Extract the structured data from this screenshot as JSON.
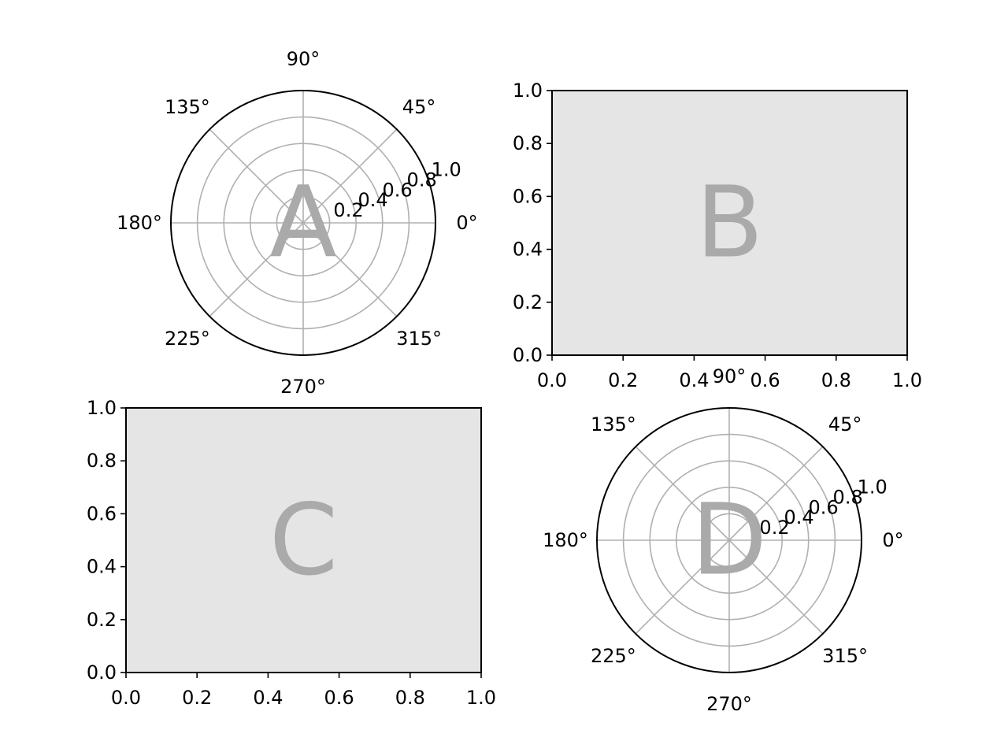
{
  "chart_data": [
    {
      "type": "polar",
      "panel_label": "A",
      "theta_tick_labels": [
        "0°",
        "45°",
        "90°",
        "135°",
        "180°",
        "225°",
        "270°",
        "315°"
      ],
      "theta_ticks_deg": [
        0,
        45,
        90,
        135,
        180,
        225,
        270,
        315
      ],
      "r_ticks": [
        0.2,
        0.4,
        0.6,
        0.8,
        1.0
      ],
      "r_tick_labels": [
        "0.2",
        "0.4",
        "0.6",
        "0.8",
        "1.0"
      ],
      "rlim": [
        0,
        1.0
      ],
      "grid": true,
      "background": "#ffffff"
    },
    {
      "type": "empty",
      "panel_label": "B",
      "x_ticks": [
        0.0,
        0.2,
        0.4,
        0.6,
        0.8,
        1.0
      ],
      "x_tick_labels": [
        "0.0",
        "0.2",
        "0.4",
        "0.6",
        "0.8",
        "1.0"
      ],
      "y_ticks": [
        0.0,
        0.2,
        0.4,
        0.6,
        0.8,
        1.0
      ],
      "y_tick_labels": [
        "0.0",
        "0.2",
        "0.4",
        "0.6",
        "0.8",
        "1.0"
      ],
      "xlim": [
        0,
        1
      ],
      "ylim": [
        0,
        1
      ],
      "grid": false,
      "background": "#e5e5e5"
    },
    {
      "type": "empty",
      "panel_label": "C",
      "x_ticks": [
        0.0,
        0.2,
        0.4,
        0.6,
        0.8,
        1.0
      ],
      "x_tick_labels": [
        "0.0",
        "0.2",
        "0.4",
        "0.6",
        "0.8",
        "1.0"
      ],
      "y_ticks": [
        0.0,
        0.2,
        0.4,
        0.6,
        0.8,
        1.0
      ],
      "y_tick_labels": [
        "0.0",
        "0.2",
        "0.4",
        "0.6",
        "0.8",
        "1.0"
      ],
      "xlim": [
        0,
        1
      ],
      "ylim": [
        0,
        1
      ],
      "grid": false,
      "background": "#e5e5e5"
    },
    {
      "type": "polar",
      "panel_label": "D",
      "theta_tick_labels": [
        "0°",
        "45°",
        "90°",
        "135°",
        "180°",
        "225°",
        "270°",
        "315°"
      ],
      "theta_ticks_deg": [
        0,
        45,
        90,
        135,
        180,
        225,
        270,
        315
      ],
      "r_ticks": [
        0.2,
        0.4,
        0.6,
        0.8,
        1.0
      ],
      "r_tick_labels": [
        "0.2",
        "0.4",
        "0.6",
        "0.8",
        "1.0"
      ],
      "rlim": [
        0,
        1.0
      ],
      "grid": true,
      "background": "#ffffff"
    }
  ]
}
